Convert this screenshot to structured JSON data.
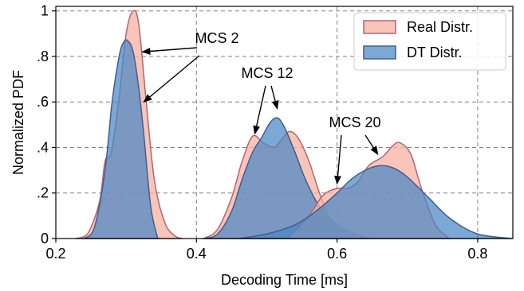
{
  "chart_data": {
    "type": "area",
    "xlabel": "Decoding Time [ms]",
    "ylabel": "Normalized PDF",
    "xlim": [
      0.2,
      0.85
    ],
    "ylim": [
      0,
      1.02
    ],
    "x_ticks": [
      0.2,
      0.4,
      0.6,
      0.8
    ],
    "x_tick_labels": [
      "0.2",
      "0.4",
      "0.6",
      "0.8"
    ],
    "y_ticks": [
      0,
      0.2,
      0.4,
      0.6,
      0.8,
      1.0
    ],
    "y_tick_labels": [
      "0",
      ".2",
      ".4",
      ".6",
      ".8",
      "1"
    ],
    "grid": true,
    "legend_position": "top-right",
    "colors": {
      "real_fill": "#f7b1a1",
      "real_edge": "#b56470",
      "dt_fill": "#4a86c5",
      "dt_edge": "#3f5f8f"
    },
    "series": [
      {
        "name": "Real Distr.",
        "groups": [
          {
            "x": [
              0.228,
              0.245,
              0.262,
              0.27,
              0.279,
              0.29,
              0.3,
              0.31,
              0.318,
              0.328,
              0.34,
              0.355,
              0.37,
              0.38
            ],
            "y": [
              0,
              0.02,
              0.16,
              0.34,
              0.38,
              0.62,
              0.9,
              1.0,
              0.94,
              0.62,
              0.26,
              0.07,
              0.01,
              0
            ]
          },
          {
            "x": [
              0.41,
              0.43,
              0.45,
              0.465,
              0.48,
              0.495,
              0.51,
              0.52,
              0.532,
              0.545,
              0.56,
              0.575,
              0.59,
              0.605,
              0.62
            ],
            "y": [
              0,
              0.04,
              0.18,
              0.34,
              0.45,
              0.42,
              0.4,
              0.43,
              0.47,
              0.44,
              0.34,
              0.2,
              0.09,
              0.02,
              0
            ]
          },
          {
            "x": [
              0.53,
              0.56,
              0.58,
              0.6,
              0.615,
              0.63,
              0.645,
              0.665,
              0.68,
              0.69,
              0.705,
              0.72,
              0.74,
              0.76
            ],
            "y": [
              0,
              0.1,
              0.19,
              0.22,
              0.22,
              0.25,
              0.32,
              0.36,
              0.41,
              0.42,
              0.37,
              0.22,
              0.06,
              0
            ]
          }
        ]
      },
      {
        "name": "DT Distr.",
        "groups": [
          {
            "x": [
              0.24,
              0.255,
              0.27,
              0.28,
              0.29,
              0.296,
              0.302,
              0.31,
              0.318,
              0.325,
              0.335,
              0.345
            ],
            "y": [
              0,
              0.05,
              0.3,
              0.6,
              0.8,
              0.86,
              0.87,
              0.82,
              0.66,
              0.46,
              0.14,
              0
            ]
          },
          {
            "x": [
              0.41,
              0.43,
              0.45,
              0.465,
              0.48,
              0.492,
              0.505,
              0.515,
              0.525,
              0.54,
              0.555,
              0.575,
              0.6,
              0.625,
              0.645
            ],
            "y": [
              0,
              0.02,
              0.12,
              0.26,
              0.38,
              0.44,
              0.51,
              0.53,
              0.49,
              0.38,
              0.26,
              0.14,
              0.06,
              0.02,
              0
            ]
          },
          {
            "x": [
              0.46,
              0.5,
              0.54,
              0.57,
              0.6,
              0.62,
              0.64,
              0.66,
              0.68,
              0.7,
              0.73,
              0.76,
              0.8,
              0.85
            ],
            "y": [
              0,
              0.02,
              0.06,
              0.12,
              0.2,
              0.26,
              0.3,
              0.32,
              0.31,
              0.27,
              0.18,
              0.09,
              0.02,
              0
            ]
          }
        ]
      }
    ],
    "annotations": [
      {
        "text": "MCS 2",
        "arrows_to": [
          [
            0.323,
            0.82
          ],
          [
            0.325,
            0.6
          ]
        ]
      },
      {
        "text": "MCS 12",
        "arrows_to": [
          [
            0.483,
            0.46
          ],
          [
            0.515,
            0.57
          ]
        ]
      },
      {
        "text": "MCS 20",
        "arrows_to": [
          [
            0.6,
            0.24
          ],
          [
            0.658,
            0.37
          ]
        ]
      }
    ]
  }
}
